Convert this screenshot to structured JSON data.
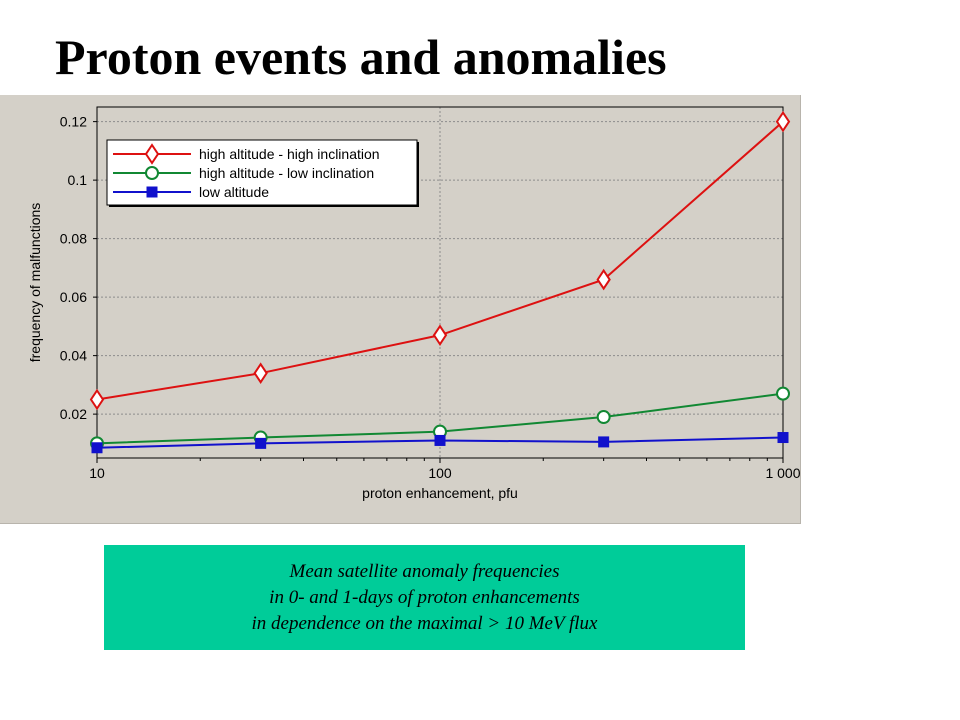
{
  "slide": {
    "title": "Proton events and anomalies",
    "caption": [
      "Mean satellite anomaly frequencies",
      "in 0- and 1-days of proton enhancements",
      "in dependence on the maximal > 10 MeV flux"
    ]
  },
  "chart_data": {
    "type": "line",
    "title": "",
    "xlabel": "proton enhancement, pfu",
    "ylabel": "frequency of malfunctions",
    "x_scale": "log",
    "xlim": [
      10,
      1000
    ],
    "ylim": [
      0.005,
      0.125
    ],
    "x_ticks": [
      10,
      100,
      1000
    ],
    "x_tick_labels": [
      "10",
      "100",
      "1 000"
    ],
    "y_ticks": [
      0.02,
      0.04,
      0.06,
      0.08,
      0.1,
      0.12
    ],
    "y_tick_labels": [
      "0.02",
      "0.04",
      "0.06",
      "0.08",
      "0.1",
      "0.12"
    ],
    "grid": true,
    "legend_position": "top-left",
    "series": [
      {
        "name": "high altitude - high inclination",
        "color": "#dd1111",
        "marker": "diamond",
        "x": [
          10,
          30,
          100,
          300,
          1000
        ],
        "y": [
          0.025,
          0.034,
          0.047,
          0.066,
          0.12
        ]
      },
      {
        "name": "high altitude - low inclination",
        "color": "#118833",
        "marker": "circle",
        "x": [
          10,
          30,
          100,
          300,
          1000
        ],
        "y": [
          0.01,
          0.012,
          0.014,
          0.019,
          0.027
        ]
      },
      {
        "name": "low altitude",
        "color": "#1111cc",
        "marker": "square",
        "x": [
          10,
          30,
          100,
          300,
          1000
        ],
        "y": [
          0.0085,
          0.01,
          0.011,
          0.0105,
          0.012
        ]
      }
    ]
  }
}
